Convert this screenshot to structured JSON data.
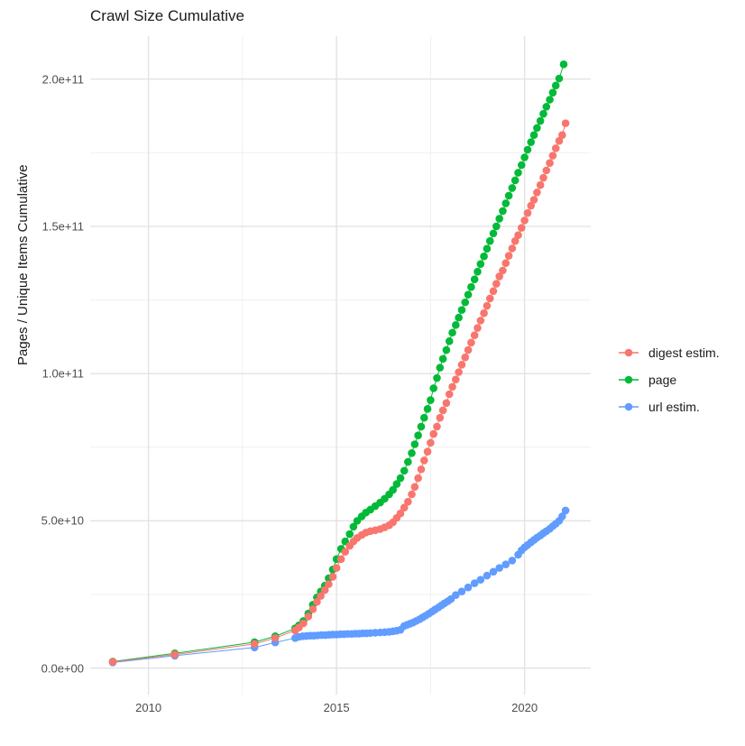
{
  "chart_data": {
    "type": "line",
    "title": "Crawl Size Cumulative",
    "xlabel": "",
    "ylabel": "Pages / Unique Items Cumulative",
    "xlim": [
      2008.45,
      2021.76
    ],
    "ylim": [
      -9000000000.0,
      214600000000.0
    ],
    "grid": true,
    "legend_position": "right",
    "colors": {
      "digest": "#F8766D",
      "page": "#00BA38",
      "url": "#619CFF",
      "grid_major": "#e3e3e3",
      "grid_minor": "#f0f0f0",
      "tick_text": "#4d4d4d",
      "title_text": "#1a1a1a"
    },
    "x_axis": {
      "major_ticks": [
        2010,
        2015,
        2020
      ],
      "minor_ticks": [
        2012.5,
        2017.5
      ],
      "tick_labels": [
        "2010",
        "2015",
        "2020"
      ]
    },
    "y_axis": {
      "major_ticks": [
        0,
        50000000000.0,
        100000000000.0,
        150000000000.0,
        200000000000.0
      ],
      "minor_ticks": [
        25000000000.0,
        75000000000.0,
        125000000000.0,
        175000000000.0
      ],
      "tick_labels": [
        "0.0e+00",
        "5.0e+10",
        "1.0e+11",
        "1.5e+11",
        "2.0e+11"
      ]
    },
    "draw_order": [
      1,
      2,
      0
    ],
    "series": [
      {
        "name": "digest estim.",
        "color": "#F8766D",
        "points": [
          [
            2009.05,
            2100000000.0
          ],
          [
            2010.7,
            4600000000.0
          ],
          [
            2012.82,
            8200000000.0
          ],
          [
            2013.37,
            10200000000.0
          ],
          [
            2013.9,
            12800000000.0
          ],
          [
            2014.0,
            13800000000.0
          ],
          [
            2014.12,
            15200000000.0
          ],
          [
            2014.25,
            17500000000.0
          ],
          [
            2014.37,
            20000000000.0
          ],
          [
            2014.48,
            22500000000.0
          ],
          [
            2014.58,
            24500000000.0
          ],
          [
            2014.69,
            26500000000.0
          ],
          [
            2014.79,
            28500000000.0
          ],
          [
            2014.9,
            31000000000.0
          ],
          [
            2015.0,
            34000000000.0
          ],
          [
            2015.12,
            37000000000.0
          ],
          [
            2015.23,
            39500000000.0
          ],
          [
            2015.35,
            41500000000.0
          ],
          [
            2015.45,
            43000000000.0
          ],
          [
            2015.55,
            44200000000.0
          ],
          [
            2015.67,
            45200000000.0
          ],
          [
            2015.78,
            46000000000.0
          ],
          [
            2015.9,
            46500000000.0
          ],
          [
            2016.03,
            46800000000.0
          ],
          [
            2016.16,
            47200000000.0
          ],
          [
            2016.28,
            47800000000.0
          ],
          [
            2016.4,
            48500000000.0
          ],
          [
            2016.5,
            49500000000.0
          ],
          [
            2016.6,
            51000000000.0
          ],
          [
            2016.7,
            52500000000.0
          ],
          [
            2016.8,
            54500000000.0
          ],
          [
            2016.9,
            56500000000.0
          ],
          [
            2017.0,
            59000000000.0
          ],
          [
            2017.08,
            61500000000.0
          ],
          [
            2017.17,
            64500000000.0
          ],
          [
            2017.25,
            67500000000.0
          ],
          [
            2017.33,
            70500000000.0
          ],
          [
            2017.42,
            73500000000.0
          ],
          [
            2017.5,
            76500000000.0
          ],
          [
            2017.58,
            79500000000.0
          ],
          [
            2017.67,
            82000000000.0
          ],
          [
            2017.75,
            85000000000.0
          ],
          [
            2017.83,
            87500000000.0
          ],
          [
            2017.92,
            90000000000.0
          ],
          [
            2018.0,
            93000000000.0
          ],
          [
            2018.08,
            95500000000.0
          ],
          [
            2018.17,
            98000000000.0
          ],
          [
            2018.25,
            100500000000.0
          ],
          [
            2018.33,
            103000000000.0
          ],
          [
            2018.42,
            105500000000.0
          ],
          [
            2018.5,
            108000000000.0
          ],
          [
            2018.58,
            110500000000.0
          ],
          [
            2018.67,
            113000000000.0
          ],
          [
            2018.75,
            115500000000.0
          ],
          [
            2018.83,
            118000000000.0
          ],
          [
            2018.92,
            120500000000.0
          ],
          [
            2019.0,
            123000000000.0
          ],
          [
            2019.08,
            125500000000.0
          ],
          [
            2019.17,
            128000000000.0
          ],
          [
            2019.25,
            130500000000.0
          ],
          [
            2019.33,
            133000000000.0
          ],
          [
            2019.42,
            135000000000.0
          ],
          [
            2019.5,
            137500000000.0
          ],
          [
            2019.58,
            140000000000.0
          ],
          [
            2019.67,
            142500000000.0
          ],
          [
            2019.75,
            145000000000.0
          ],
          [
            2019.83,
            147000000000.0
          ],
          [
            2019.92,
            149500000000.0
          ],
          [
            2020.0,
            152000000000.0
          ],
          [
            2020.08,
            154500000000.0
          ],
          [
            2020.17,
            157000000000.0
          ],
          [
            2020.25,
            159000000000.0
          ],
          [
            2020.33,
            161500000000.0
          ],
          [
            2020.42,
            164000000000.0
          ],
          [
            2020.5,
            166500000000.0
          ],
          [
            2020.58,
            169000000000.0
          ],
          [
            2020.67,
            171500000000.0
          ],
          [
            2020.75,
            174000000000.0
          ],
          [
            2020.83,
            176500000000.0
          ],
          [
            2020.92,
            179000000000.0
          ],
          [
            2021.0,
            181000000000.0
          ],
          [
            2021.09,
            185000000000.0
          ]
        ]
      },
      {
        "name": "page",
        "color": "#00BA38",
        "points": [
          [
            2009.05,
            2200000000.0
          ],
          [
            2010.7,
            5000000000.0
          ],
          [
            2012.82,
            8800000000.0
          ],
          [
            2013.37,
            10800000000.0
          ],
          [
            2013.9,
            13500000000.0
          ],
          [
            2014.0,
            14500000000.0
          ],
          [
            2014.12,
            16000000000.0
          ],
          [
            2014.25,
            18500000000.0
          ],
          [
            2014.37,
            21500000000.0
          ],
          [
            2014.48,
            24000000000.0
          ],
          [
            2014.58,
            26000000000.0
          ],
          [
            2014.69,
            28000000000.0
          ],
          [
            2014.79,
            30500000000.0
          ],
          [
            2014.9,
            33500000000.0
          ],
          [
            2015.0,
            37000000000.0
          ],
          [
            2015.12,
            40500000000.0
          ],
          [
            2015.23,
            43000000000.0
          ],
          [
            2015.35,
            45500000000.0
          ],
          [
            2015.45,
            48000000000.0
          ],
          [
            2015.55,
            50000000000.0
          ],
          [
            2015.67,
            51500000000.0
          ],
          [
            2015.78,
            52800000000.0
          ],
          [
            2015.9,
            53800000000.0
          ],
          [
            2016.03,
            55000000000.0
          ],
          [
            2016.16,
            56200000000.0
          ],
          [
            2016.28,
            57500000000.0
          ],
          [
            2016.4,
            59000000000.0
          ],
          [
            2016.5,
            60500000000.0
          ],
          [
            2016.6,
            62500000000.0
          ],
          [
            2016.7,
            64500000000.0
          ],
          [
            2016.8,
            67000000000.0
          ],
          [
            2016.9,
            70000000000.0
          ],
          [
            2017.0,
            73000000000.0
          ],
          [
            2017.08,
            76000000000.0
          ],
          [
            2017.17,
            79000000000.0
          ],
          [
            2017.25,
            82000000000.0
          ],
          [
            2017.33,
            85000000000.0
          ],
          [
            2017.42,
            88000000000.0
          ],
          [
            2017.5,
            91000000000.0
          ],
          [
            2017.58,
            95000000000.0
          ],
          [
            2017.67,
            98500000000.0
          ],
          [
            2017.75,
            102000000000.0
          ],
          [
            2017.83,
            105000000000.0
          ],
          [
            2017.92,
            108000000000.0
          ],
          [
            2018.0,
            111000000000.0
          ],
          [
            2018.08,
            113900000000.0
          ],
          [
            2018.17,
            116500000000.0
          ],
          [
            2018.25,
            119000000000.0
          ],
          [
            2018.33,
            121600000000.0
          ],
          [
            2018.42,
            124200000000.0
          ],
          [
            2018.5,
            126800000000.0
          ],
          [
            2018.58,
            129400000000.0
          ],
          [
            2018.67,
            132000000000.0
          ],
          [
            2018.75,
            134600000000.0
          ],
          [
            2018.83,
            137200000000.0
          ],
          [
            2018.92,
            139800000000.0
          ],
          [
            2019.0,
            142400000000.0
          ],
          [
            2019.08,
            145000000000.0
          ],
          [
            2019.17,
            147600000000.0
          ],
          [
            2019.25,
            150000000000.0
          ],
          [
            2019.33,
            152600000000.0
          ],
          [
            2019.42,
            155200000000.0
          ],
          [
            2019.5,
            157800000000.0
          ],
          [
            2019.58,
            160400000000.0
          ],
          [
            2019.67,
            163000000000.0
          ],
          [
            2019.75,
            165600000000.0
          ],
          [
            2019.83,
            168200000000.0
          ],
          [
            2019.92,
            170800000000.0
          ],
          [
            2020.0,
            173400000000.0
          ],
          [
            2020.08,
            176000000000.0
          ],
          [
            2020.17,
            178600000000.0
          ],
          [
            2020.25,
            181000000000.0
          ],
          [
            2020.33,
            183400000000.0
          ],
          [
            2020.42,
            185800000000.0
          ],
          [
            2020.5,
            188200000000.0
          ],
          [
            2020.58,
            190600000000.0
          ],
          [
            2020.67,
            193000000000.0
          ],
          [
            2020.75,
            195400000000.0
          ],
          [
            2020.83,
            197800000000.0
          ],
          [
            2020.92,
            200200000000.0
          ],
          [
            2021.04,
            205000000000.0
          ]
        ]
      },
      {
        "name": "url estim.",
        "color": "#619CFF",
        "points": [
          [
            2009.05,
            1900000000.0
          ],
          [
            2010.7,
            4200000000.0
          ],
          [
            2012.82,
            7000000000.0
          ],
          [
            2013.37,
            8700000000.0
          ],
          [
            2013.9,
            10200000000.0
          ],
          [
            2014.0,
            10600000000.0
          ],
          [
            2014.1,
            10800000000.0
          ],
          [
            2014.2,
            10900000000.0
          ],
          [
            2014.3,
            11000000000.0
          ],
          [
            2014.4,
            11000000000.0
          ],
          [
            2014.5,
            11100000000.0
          ],
          [
            2014.6,
            11200000000.0
          ],
          [
            2014.7,
            11200000000.0
          ],
          [
            2014.8,
            11300000000.0
          ],
          [
            2014.9,
            11400000000.0
          ],
          [
            2015.0,
            11400000000.0
          ],
          [
            2015.1,
            11500000000.0
          ],
          [
            2015.2,
            11500000000.0
          ],
          [
            2015.3,
            11600000000.0
          ],
          [
            2015.4,
            11600000000.0
          ],
          [
            2015.5,
            11700000000.0
          ],
          [
            2015.6,
            11700000000.0
          ],
          [
            2015.7,
            11800000000.0
          ],
          [
            2015.8,
            11800000000.0
          ],
          [
            2015.9,
            11900000000.0
          ],
          [
            2016.03,
            12000000000.0
          ],
          [
            2016.16,
            12100000000.0
          ],
          [
            2016.28,
            12200000000.0
          ],
          [
            2016.4,
            12300000000.0
          ],
          [
            2016.5,
            12500000000.0
          ],
          [
            2016.6,
            12700000000.0
          ],
          [
            2016.7,
            13000000000.0
          ],
          [
            2016.8,
            14300000000.0
          ],
          [
            2016.88,
            14700000000.0
          ],
          [
            2016.96,
            15100000000.0
          ],
          [
            2017.04,
            15500000000.0
          ],
          [
            2017.12,
            16000000000.0
          ],
          [
            2017.21,
            16600000000.0
          ],
          [
            2017.29,
            17200000000.0
          ],
          [
            2017.37,
            17800000000.0
          ],
          [
            2017.46,
            18500000000.0
          ],
          [
            2017.54,
            19200000000.0
          ],
          [
            2017.62,
            19900000000.0
          ],
          [
            2017.71,
            20600000000.0
          ],
          [
            2017.79,
            21300000000.0
          ],
          [
            2017.87,
            22000000000.0
          ],
          [
            2017.96,
            22700000000.0
          ],
          [
            2018.04,
            23400000000.0
          ],
          [
            2018.17,
            24800000000.0
          ],
          [
            2018.33,
            26000000000.0
          ],
          [
            2018.5,
            27400000000.0
          ],
          [
            2018.67,
            28800000000.0
          ],
          [
            2018.83,
            30000000000.0
          ],
          [
            2019.0,
            31400000000.0
          ],
          [
            2019.17,
            32700000000.0
          ],
          [
            2019.33,
            34000000000.0
          ],
          [
            2019.5,
            35200000000.0
          ],
          [
            2019.67,
            36500000000.0
          ],
          [
            2019.83,
            38500000000.0
          ],
          [
            2019.92,
            40000000000.0
          ],
          [
            2020.0,
            41000000000.0
          ],
          [
            2020.08,
            41800000000.0
          ],
          [
            2020.17,
            42700000000.0
          ],
          [
            2020.25,
            43500000000.0
          ],
          [
            2020.33,
            44300000000.0
          ],
          [
            2020.42,
            45000000000.0
          ],
          [
            2020.5,
            45800000000.0
          ],
          [
            2020.58,
            46500000000.0
          ],
          [
            2020.67,
            47300000000.0
          ],
          [
            2020.75,
            48200000000.0
          ],
          [
            2020.83,
            49000000000.0
          ],
          [
            2020.92,
            50000000000.0
          ],
          [
            2021.0,
            51500000000.0
          ],
          [
            2021.09,
            53500000000.0
          ]
        ]
      }
    ]
  },
  "legend": {
    "items": [
      {
        "label": "digest estim."
      },
      {
        "label": "page"
      },
      {
        "label": "url estim."
      }
    ]
  }
}
